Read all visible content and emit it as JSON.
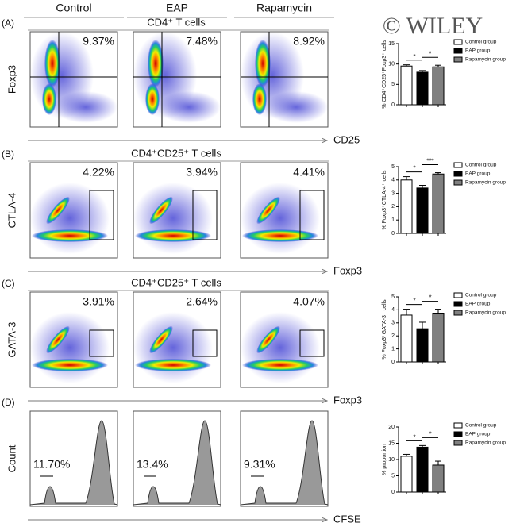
{
  "figure": {
    "watermark": "© WILEY",
    "columns": [
      "Control",
      "EAP",
      "Rapamycin"
    ],
    "panels": [
      {
        "label": "(A)",
        "title": "CD4⁺ T cells",
        "y_label": "Foxp3",
        "x_label": "CD25",
        "percents": [
          "9.37%",
          "7.48%",
          "8.92%"
        ]
      },
      {
        "label": "(B)",
        "title": "CD4⁺CD25⁺ T cells",
        "y_label": "CTLA-4",
        "x_label": "Foxp3",
        "percents": [
          "4.22%",
          "3.94%",
          "4.41%"
        ]
      },
      {
        "label": "(C)",
        "title": "CD4⁺CD25⁺ T cells",
        "y_label": "GATA-3",
        "x_label": "Foxp3",
        "percents": [
          "3.91%",
          "2.64%",
          "4.07%"
        ]
      },
      {
        "label": "(D)",
        "y_label": "Count",
        "x_label": "CFSE",
        "percents": [
          "11.70%",
          "13.4%",
          "9.31%"
        ]
      }
    ]
  },
  "chart_data": [
    {
      "type": "bar",
      "y_label": "% CD4⁺CD25⁺Foxp3⁺ cells",
      "categories": [
        "Control group",
        "EAP group",
        "Rapamycin group"
      ],
      "colors": [
        "#ffffff",
        "#000000",
        "#808080"
      ],
      "values": [
        9.5,
        8.0,
        9.3
      ],
      "errors": [
        0.3,
        0.4,
        0.4
      ],
      "annotations": [
        "*",
        "*"
      ],
      "ylim": [
        0,
        15
      ],
      "yticks": [
        0,
        5,
        10,
        15
      ]
    },
    {
      "type": "bar",
      "y_label": "% Foxp3⁺CTLA-4⁺ cells",
      "categories": [
        "Control group",
        "EAP group",
        "Rapamycin group"
      ],
      "colors": [
        "#ffffff",
        "#000000",
        "#808080"
      ],
      "values": [
        4.0,
        3.4,
        4.45
      ],
      "errors": [
        0.25,
        0.2,
        0.1
      ],
      "annotations": [
        "*",
        "***"
      ],
      "ylim": [
        0,
        5
      ],
      "yticks": [
        0,
        1,
        2,
        3,
        4,
        5
      ]
    },
    {
      "type": "bar",
      "y_label": "% Foxp3⁺GATA-3⁺ cells",
      "categories": [
        "Control group",
        "EAP group",
        "Rapamycin group"
      ],
      "colors": [
        "#ffffff",
        "#000000",
        "#808080"
      ],
      "values": [
        3.6,
        2.55,
        3.75
      ],
      "errors": [
        0.45,
        0.5,
        0.3
      ],
      "annotations": [
        "*",
        "*"
      ],
      "ylim": [
        0,
        5
      ],
      "yticks": [
        0,
        1,
        2,
        3,
        4,
        5
      ]
    },
    {
      "type": "bar",
      "y_label": "% proportion",
      "categories": [
        "Control group",
        "EAP group",
        "Rapamycin group"
      ],
      "colors": [
        "#ffffff",
        "#000000",
        "#808080"
      ],
      "values": [
        11.0,
        13.8,
        8.3
      ],
      "errors": [
        0.6,
        0.5,
        1.2
      ],
      "annotations": [
        "*",
        "*"
      ],
      "ylim": [
        0,
        20
      ],
      "yticks": [
        0,
        5,
        10,
        15,
        20
      ]
    }
  ]
}
